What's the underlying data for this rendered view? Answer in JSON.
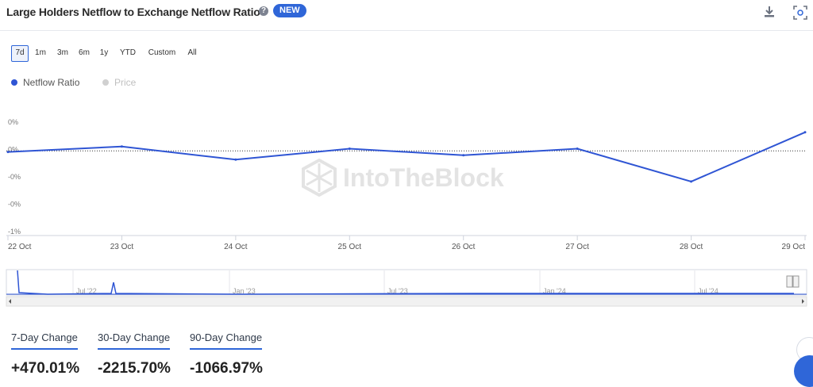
{
  "header": {
    "title": "Large Holders Netflow to Exchange Netflow Ratio",
    "badge": "NEW",
    "help_icon": "question-circle-icon",
    "download_icon": "download-icon",
    "expand_icon": "expand-icon"
  },
  "ranges": [
    "7d",
    "1m",
    "3m",
    "6m",
    "1y",
    "YTD",
    "Custom",
    "All"
  ],
  "active_range": "7d",
  "legend": [
    {
      "label": "Netflow Ratio",
      "color": "#2f55d4",
      "active": true
    },
    {
      "label": "Price",
      "color": "#c8c8c8",
      "active": false
    }
  ],
  "watermark": "IntoTheBlock",
  "chart_data": {
    "type": "line",
    "title": "Large Holders Netflow to Exchange Netflow Ratio",
    "x": [
      "22 Oct",
      "23 Oct",
      "24 Oct",
      "25 Oct",
      "26 Oct",
      "27 Oct",
      "28 Oct",
      "29 Oct"
    ],
    "x_ticks": [
      "22 Oct",
      "23 Oct",
      "24 Oct",
      "25 Oct",
      "26 Oct",
      "27 Oct",
      "28 Oct",
      "29 Oct"
    ],
    "y_ticks": [
      "0%",
      "0%",
      "-0%",
      "-0%",
      "-1%"
    ],
    "ylim": [
      -1.0,
      0.0
    ],
    "series": [
      {
        "name": "Netflow Ratio",
        "color": "#2f55d4",
        "values": [
          -0.28,
          -0.23,
          -0.35,
          -0.25,
          -0.31,
          -0.25,
          -0.55,
          -0.1
        ]
      }
    ],
    "reference_line": -0.27,
    "grid": false
  },
  "navigator": {
    "labels": [
      "Jul '22",
      "Jan '23",
      "Jul '23",
      "Jan '24",
      "Jul '24"
    ]
  },
  "changes": [
    {
      "label": "7-Day Change",
      "value": "+470.01%"
    },
    {
      "label": "30-Day Change",
      "value": "-2215.70%"
    },
    {
      "label": "90-Day Change",
      "value": "-1066.97%"
    }
  ]
}
